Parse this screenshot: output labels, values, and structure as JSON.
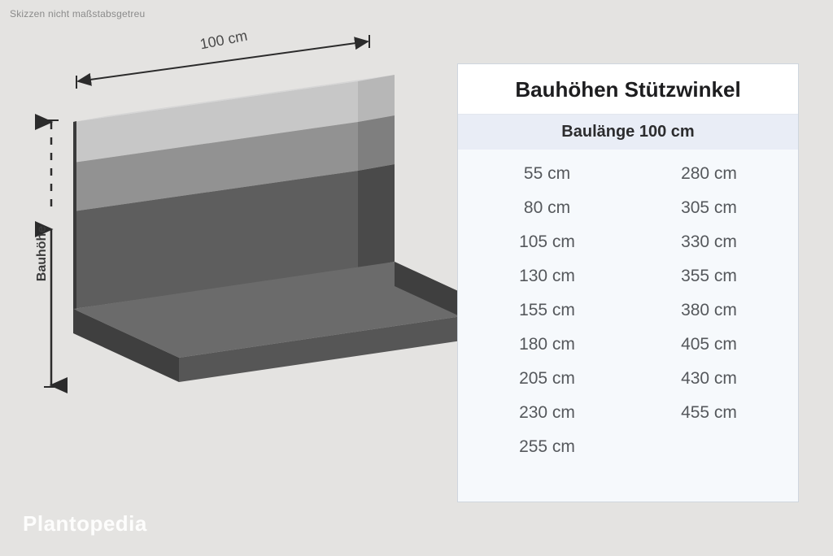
{
  "meta": {
    "note_top": "Skizzen nicht maßstabsgetreu",
    "brand": "Plantopedia"
  },
  "colors": {
    "background": "#e4e3e1",
    "panel_bg": "#f6f9fc",
    "panel_border": "#cfd6de",
    "panel_header_bg": "#ffffff",
    "panel_sub_bg": "#e9edf6",
    "text_dark": "#1d1d1f",
    "text_muted": "#55585c",
    "dim_line": "#2b2b2b"
  },
  "diagram": {
    "type": "infographic",
    "top_dimension_label": "100 cm",
    "left_dimension_label": "Bauhöhe",
    "shape": {
      "wall_top_light": "#c7c7c7",
      "wall_top_shadow": "#b7b7b7",
      "wall_mid": "#929292",
      "wall_mid_shadow": "#7f7f7f",
      "wall_base": "#5e5e5e",
      "side_dark": "#4a4a4a",
      "foot_top": "#6b6b6b",
      "foot_front": "#565656",
      "foot_side": "#3f3f3f"
    }
  },
  "table": {
    "title": "Bauhöhen Stützwinkel",
    "subhead": "Baulänge 100 cm",
    "col1": [
      "55 cm",
      "80 cm",
      "105 cm",
      "130 cm",
      "155 cm",
      "180 cm",
      "205 cm",
      "230 cm",
      "255 cm"
    ],
    "col2": [
      "280 cm",
      "305 cm",
      "330 cm",
      "355 cm",
      "380 cm",
      "405 cm",
      "430 cm",
      "455 cm"
    ]
  }
}
